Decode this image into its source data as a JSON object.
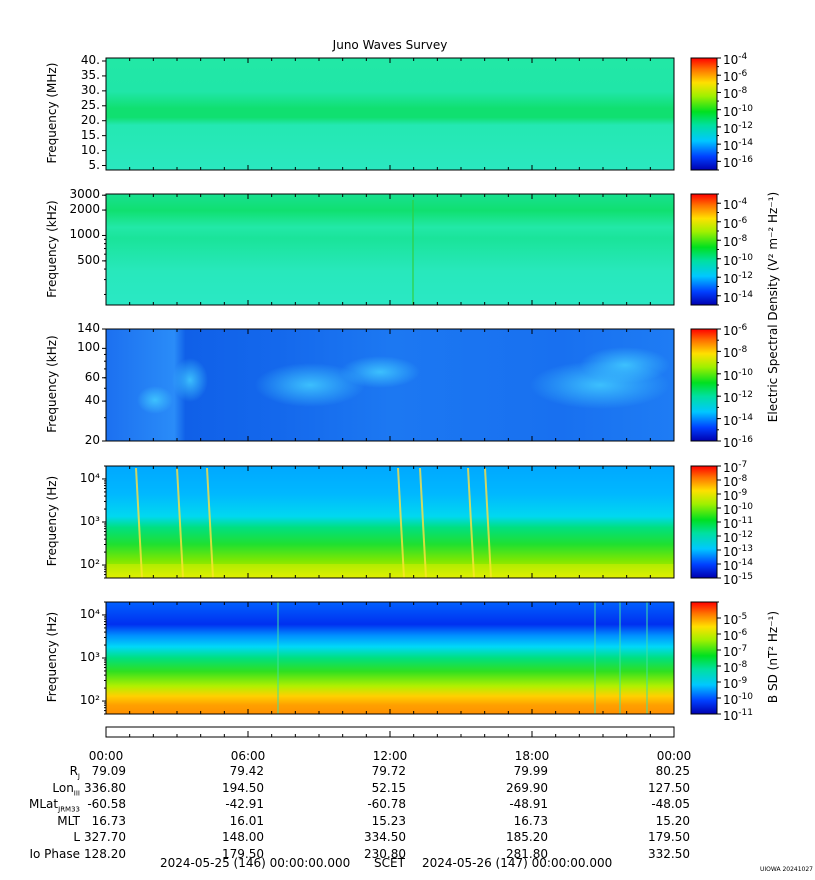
{
  "title": "Juno Waves Survey",
  "right_axis_label_top": "Electric Spectral Density (V² m⁻² Hz⁻¹)",
  "right_axis_label_bottom": "B SD (nT² Hz⁻¹)",
  "credit": "UIOWA 20241027",
  "time_ticks": [
    "00:00",
    "06:00",
    "12:00",
    "18:00",
    "00:00"
  ],
  "footer": {
    "start": "2024-05-25 (146) 00:00:00.000",
    "mid": "SCET",
    "end": "2024-05-26 (147) 00:00:00.000"
  },
  "ephemeris": [
    {
      "label": "R",
      "sub": "J",
      "values": [
        "79.09",
        "79.42",
        "79.72",
        "79.99",
        "80.25"
      ]
    },
    {
      "label": "Lon",
      "sub": "III",
      "values": [
        "336.80",
        "194.50",
        "52.15",
        "269.90",
        "127.50"
      ]
    },
    {
      "label": "MLat",
      "sub": "JRM33",
      "values": [
        "-60.58",
        "-42.91",
        "-60.78",
        "-48.91",
        "-48.05"
      ]
    },
    {
      "label": "MLT",
      "sub": "",
      "values": [
        "16.73",
        "16.01",
        "15.23",
        "16.73",
        "15.20"
      ]
    },
    {
      "label": "L",
      "sub": "",
      "values": [
        "327.70",
        "148.00",
        "334.50",
        "185.20",
        "179.50"
      ]
    },
    {
      "label": "Io Phase",
      "sub": "",
      "values": [
        "128.20",
        "179.50",
        "230.80",
        "281.80",
        "332.50"
      ]
    }
  ],
  "chart_data": [
    {
      "type": "heatmap",
      "ylabel": "Frequency (MHz)",
      "yscale": "linear",
      "ylim": [
        3.5,
        41
      ],
      "yticks": [
        "5.",
        "10.",
        "15.",
        "20.",
        "25.",
        "30.",
        "35.",
        "40."
      ],
      "ytick_values": [
        5,
        10,
        15,
        20,
        25,
        30,
        35,
        40
      ],
      "colorbar": {
        "min_exp": -17,
        "max_exp": -4,
        "ticks": [
          "-4",
          "-6",
          "-8",
          "-10",
          "-12",
          "-14",
          "-16"
        ]
      }
    },
    {
      "type": "heatmap",
      "ylabel": "Frequency (kHz)",
      "yscale": "log",
      "ylim": [
        150,
        3100
      ],
      "yticks": [
        "3000",
        "2000",
        "1000",
        "500"
      ],
      "ytick_values": [
        3000,
        2000,
        1000,
        500
      ],
      "colorbar": {
        "min_exp": -15,
        "max_exp": -3,
        "ticks": [
          "-4",
          "-6",
          "-8",
          "-10",
          "-12",
          "-14"
        ]
      }
    },
    {
      "type": "heatmap",
      "ylabel": "Frequency (kHz)",
      "yscale": "log",
      "ylim": [
        20,
        140
      ],
      "yticks": [
        "140",
        "100",
        "60",
        "40",
        "20"
      ],
      "ytick_values": [
        140,
        100,
        60,
        40,
        20
      ],
      "colorbar": {
        "min_exp": -16,
        "max_exp": -6,
        "ticks": [
          "-6",
          "-8",
          "-10",
          "-12",
          "-14",
          "-16"
        ]
      }
    },
    {
      "type": "heatmap",
      "ylabel": "Frequency (Hz)",
      "yscale": "log",
      "ylim": [
        50,
        20000
      ],
      "yticks": [
        "10⁴",
        "10³",
        "10²"
      ],
      "ytick_values": [
        10000,
        1000,
        100
      ],
      "colorbar": {
        "min_exp": -15,
        "max_exp": -7,
        "ticks": [
          "-7",
          "-8",
          "-9",
          "-10",
          "-11",
          "-12",
          "-13",
          "-14",
          "-15"
        ]
      }
    },
    {
      "type": "heatmap",
      "ylabel": "Frequency (Hz)",
      "yscale": "log",
      "ylim": [
        50,
        20000
      ],
      "yticks": [
        "10⁴",
        "10³",
        "10²"
      ],
      "ytick_values": [
        10000,
        1000,
        100
      ],
      "colorbar": {
        "min_exp": -11,
        "max_exp": -4,
        "ticks": [
          "-5",
          "-6",
          "-7",
          "-8",
          "-9",
          "-10",
          "-11"
        ]
      }
    }
  ],
  "colors": {
    "axis": "#000000",
    "background": "#ffffff"
  }
}
